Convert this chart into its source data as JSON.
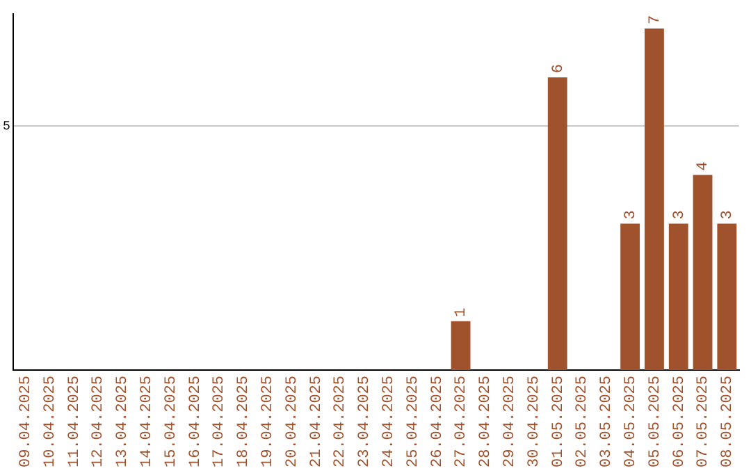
{
  "chart_data": {
    "type": "bar",
    "categories": [
      "09.04.2025",
      "10.04.2025",
      "11.04.2025",
      "12.04.2025",
      "13.04.2025",
      "14.04.2025",
      "15.04.2025",
      "16.04.2025",
      "17.04.2025",
      "18.04.2025",
      "19.04.2025",
      "20.04.2025",
      "21.04.2025",
      "22.04.2025",
      "23.04.2025",
      "24.04.2025",
      "25.04.2025",
      "26.04.2025",
      "27.04.2025",
      "28.04.2025",
      "29.04.2025",
      "30.04.2025",
      "01.05.2025",
      "02.05.2025",
      "03.05.2025",
      "04.05.2025",
      "05.05.2025",
      "06.05.2025",
      "07.05.2025",
      "08.05.2025"
    ],
    "values": [
      null,
      null,
      null,
      null,
      null,
      null,
      null,
      null,
      null,
      null,
      null,
      null,
      null,
      null,
      null,
      null,
      null,
      null,
      1,
      null,
      null,
      null,
      6,
      null,
      null,
      3,
      7,
      3,
      4,
      3
    ],
    "color": "#a0522d",
    "ylim": [
      0,
      7.3
    ],
    "yticks": [
      5
    ],
    "grid": "y",
    "data_labels": true,
    "legend": false
  }
}
